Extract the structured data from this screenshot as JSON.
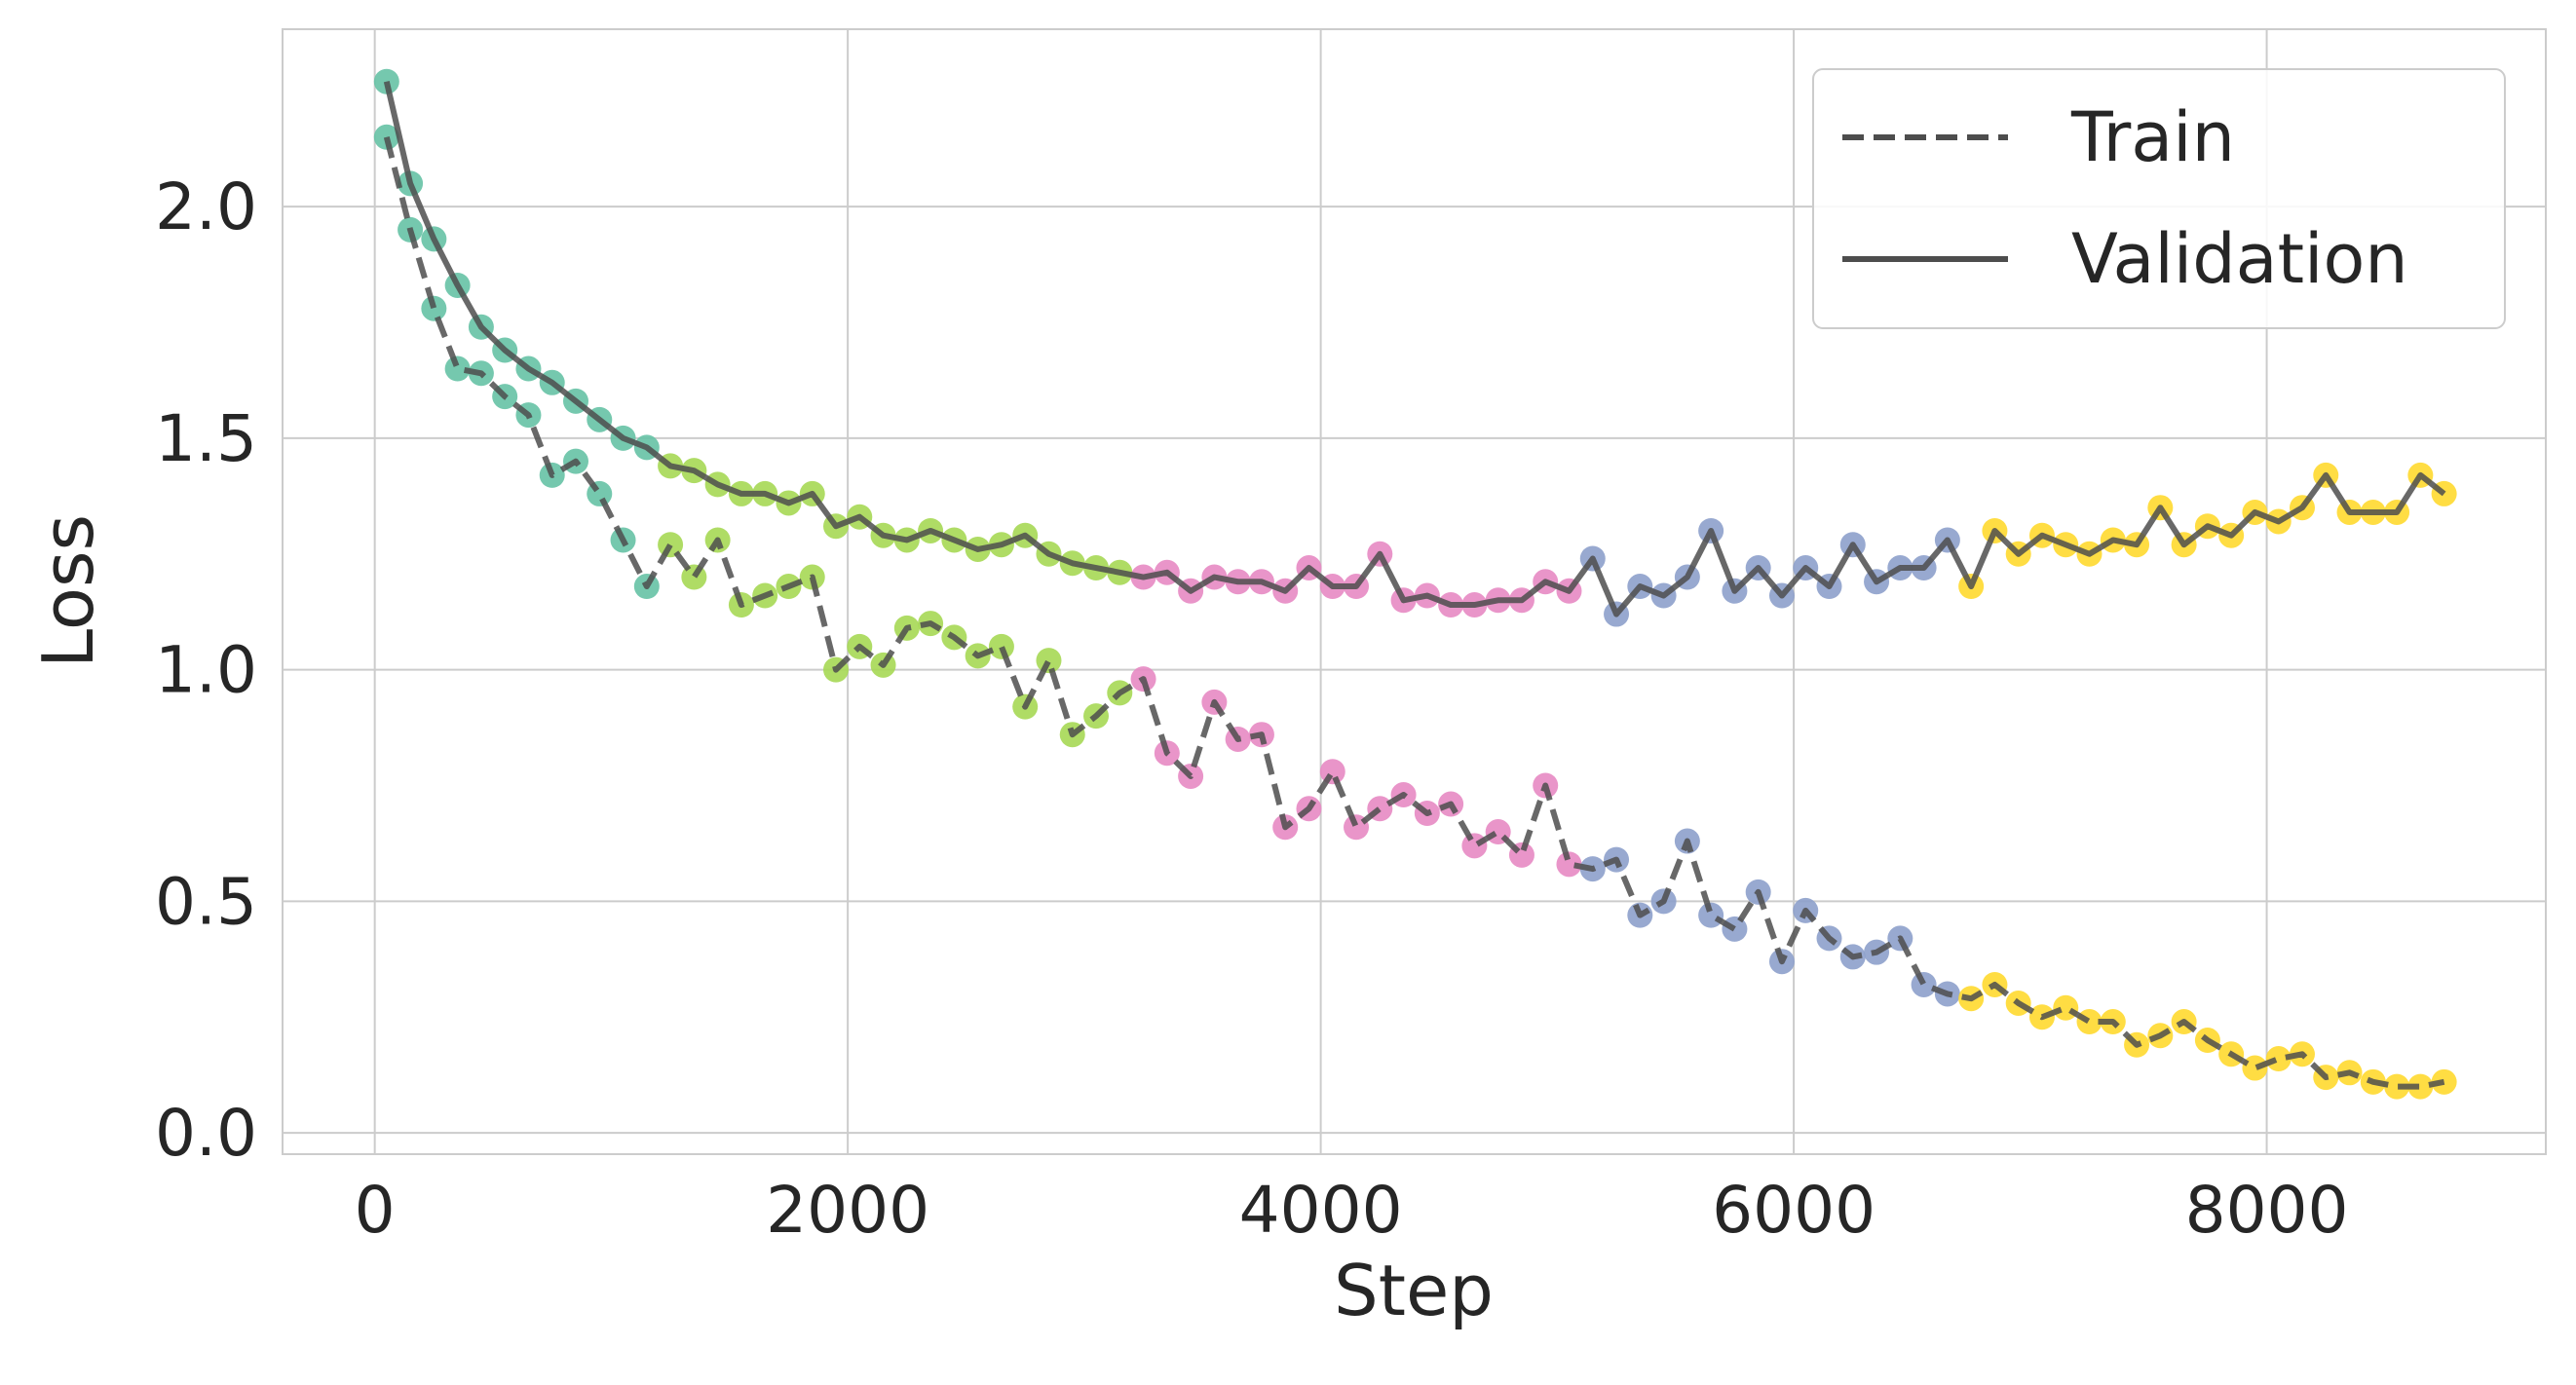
{
  "chart_data": {
    "type": "line",
    "x_label": "Step",
    "y_label": "Loss",
    "xlim": [
      -390,
      9180
    ],
    "ylim": [
      -0.046,
      2.383
    ],
    "xticks": [
      0,
      2000,
      4000,
      6000,
      8000
    ],
    "yticks": [
      {
        "value": 0,
        "label": "0.0"
      },
      {
        "value": 0.5,
        "label": "0.5"
      },
      {
        "value": 1,
        "label": "1.0"
      },
      {
        "value": 1.5,
        "label": "1.5"
      },
      {
        "value": 2,
        "label": "2.0"
      }
    ],
    "grid": true,
    "legend": "upper right",
    "line_color": "#4d4d4d",
    "phases": [
      {
        "color": "#66c2a5",
        "x_from": 0,
        "x_to": 1200
      },
      {
        "color": "#a6d854",
        "x_from": 1200,
        "x_to": 3200
      },
      {
        "color": "#e78ac3",
        "x_from": 3200,
        "x_to": 5100
      },
      {
        "color": "#8da0cb",
        "x_from": 5100,
        "x_to": 6700
      },
      {
        "color": "#ffd92f",
        "x_from": 6700,
        "x_to": 9000
      }
    ],
    "x": [
      50,
      150,
      250,
      350,
      450,
      550,
      650,
      750,
      850,
      950,
      1050,
      1150,
      1250,
      1350,
      1450,
      1550,
      1650,
      1750,
      1850,
      1950,
      2050,
      2150,
      2250,
      2350,
      2450,
      2550,
      2650,
      2750,
      2850,
      2950,
      3050,
      3150,
      3250,
      3350,
      3450,
      3550,
      3650,
      3750,
      3850,
      3950,
      4050,
      4150,
      4250,
      4350,
      4450,
      4550,
      4650,
      4750,
      4850,
      4950,
      5050,
      5150,
      5250,
      5350,
      5450,
      5550,
      5650,
      5750,
      5850,
      5950,
      6050,
      6150,
      6250,
      6350,
      6450,
      6550,
      6650,
      6750,
      6850,
      6950,
      7050,
      7150,
      7250,
      7350,
      7450,
      7550,
      7650,
      7750,
      7850,
      7950,
      8050,
      8150,
      8250,
      8350,
      8450,
      8550,
      8650,
      8750
    ],
    "series": [
      {
        "name": "Train",
        "dash": true,
        "values": [
          2.15,
          1.95,
          1.78,
          1.65,
          1.64,
          1.59,
          1.55,
          1.42,
          1.45,
          1.38,
          1.28,
          1.18,
          1.27,
          1.2,
          1.28,
          1.14,
          1.16,
          1.18,
          1.2,
          1.0,
          1.05,
          1.01,
          1.09,
          1.1,
          1.07,
          1.03,
          1.05,
          0.92,
          1.02,
          0.86,
          0.9,
          0.95,
          0.98,
          0.82,
          0.77,
          0.93,
          0.85,
          0.86,
          0.66,
          0.7,
          0.78,
          0.66,
          0.7,
          0.73,
          0.69,
          0.71,
          0.62,
          0.65,
          0.6,
          0.75,
          0.58,
          0.57,
          0.59,
          0.47,
          0.5,
          0.63,
          0.47,
          0.44,
          0.52,
          0.37,
          0.48,
          0.42,
          0.38,
          0.39,
          0.42,
          0.32,
          0.3,
          0.29,
          0.32,
          0.28,
          0.25,
          0.27,
          0.24,
          0.24,
          0.19,
          0.21,
          0.24,
          0.2,
          0.17,
          0.14,
          0.16,
          0.17,
          0.12,
          0.13,
          0.11,
          0.1,
          0.1,
          0.11
        ]
      },
      {
        "name": "Validation",
        "dash": false,
        "values": [
          2.27,
          2.05,
          1.93,
          1.83,
          1.74,
          1.69,
          1.65,
          1.62,
          1.58,
          1.54,
          1.5,
          1.48,
          1.44,
          1.43,
          1.4,
          1.38,
          1.38,
          1.36,
          1.38,
          1.31,
          1.33,
          1.29,
          1.28,
          1.3,
          1.28,
          1.26,
          1.27,
          1.29,
          1.25,
          1.23,
          1.22,
          1.21,
          1.2,
          1.21,
          1.17,
          1.2,
          1.19,
          1.19,
          1.17,
          1.22,
          1.18,
          1.18,
          1.25,
          1.15,
          1.16,
          1.14,
          1.14,
          1.15,
          1.15,
          1.19,
          1.17,
          1.24,
          1.12,
          1.18,
          1.16,
          1.2,
          1.3,
          1.17,
          1.22,
          1.16,
          1.22,
          1.18,
          1.27,
          1.19,
          1.22,
          1.22,
          1.28,
          1.18,
          1.3,
          1.25,
          1.29,
          1.27,
          1.25,
          1.28,
          1.27,
          1.35,
          1.27,
          1.31,
          1.29,
          1.34,
          1.32,
          1.35,
          1.42,
          1.34,
          1.34,
          1.34,
          1.42,
          1.38
        ]
      }
    ]
  }
}
